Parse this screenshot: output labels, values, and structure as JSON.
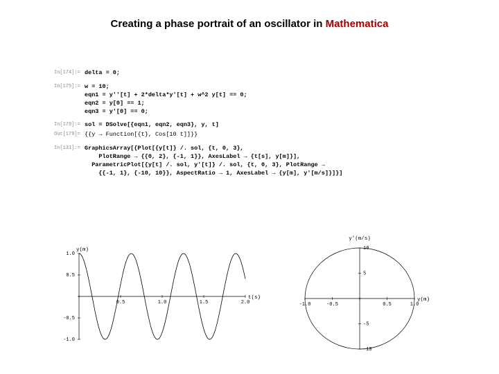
{
  "title_plain": "Creating a phase portrait of an oscillator in ",
  "title_mma": "Mathematica",
  "cells": [
    {
      "label": "In[174]:=",
      "body": "delta = 0;"
    },
    {
      "label": "In[175]:=",
      "body": "w = 10;\neqn1 = y''[t] + 2*delta*y'[t] + w^2 y[t] == 0;\neqn2 = y[0] == 1;\neqn3 = y'[0] == 0;"
    },
    {
      "label": "In[179]:=",
      "body": "sol = DSolve[{eqn1, eqn2, eqn3}, y, t]"
    },
    {
      "label": "Out[179]=",
      "out": true,
      "body": "{{y → Function[{t}, Cos[10 t]]}}"
    },
    {
      "label": "In[131]:=",
      "body": "GraphicsArray[{Plot[{y[t]} /. sol, {t, 0, 3},\n    PlotRange → {{0, 2}, {-1, 1}}, AxesLabel → {t[s], y[m]}],\n  ParametricPlot[{y[t] /. sol, y'[t]} /. sol, {t, 0, 3}, PlotRange →\n    {{-1, 1}, {-10, 10}}, AspectRatio → 1, AxesLabel → {y[m], y'[m/s]}]}]"
    }
  ],
  "chart1": {
    "type": "line",
    "xlim": [
      0,
      2
    ],
    "ylim": [
      -1,
      1
    ],
    "xticks": [
      0,
      0.5,
      1.0,
      1.5,
      2.0
    ],
    "xtick_lbl": [
      "",
      "0.5",
      "1.0",
      "1.5",
      "2.0"
    ],
    "yticks": [
      -1.0,
      -0.5,
      0,
      0.5,
      1.0
    ],
    "ytick_lbl": [
      "-1.0",
      "-0.5",
      "",
      "0.5",
      "1.0"
    ],
    "ylabel": "y(m)",
    "xlabel": "t(s)",
    "omega": 10,
    "amplitude": 1,
    "npoints": 200,
    "stroke": "#000000",
    "stroke_width": 0.8,
    "bg": "#ffffff",
    "title_fontsize": 7.5
  },
  "chart2": {
    "type": "parametric-circle",
    "xlim": [
      -1,
      1
    ],
    "ylim": [
      -10,
      10
    ],
    "xticks": [
      -1.0,
      -0.5,
      0,
      0.5,
      1.0
    ],
    "xtick_lbl": [
      "-1.0",
      "-0.5",
      "",
      "0.5",
      "1.0"
    ],
    "yticks": [
      -10,
      -5,
      0,
      5,
      10
    ],
    "ytick_lbl": [
      "-10",
      "-5",
      "",
      "5",
      "10"
    ],
    "xlabel": "y(m)",
    "ylabel": "y'(m/s)",
    "stroke": "#000000",
    "stroke_width": 0.7,
    "aspect": 1,
    "title_fontsize": 7.5
  }
}
